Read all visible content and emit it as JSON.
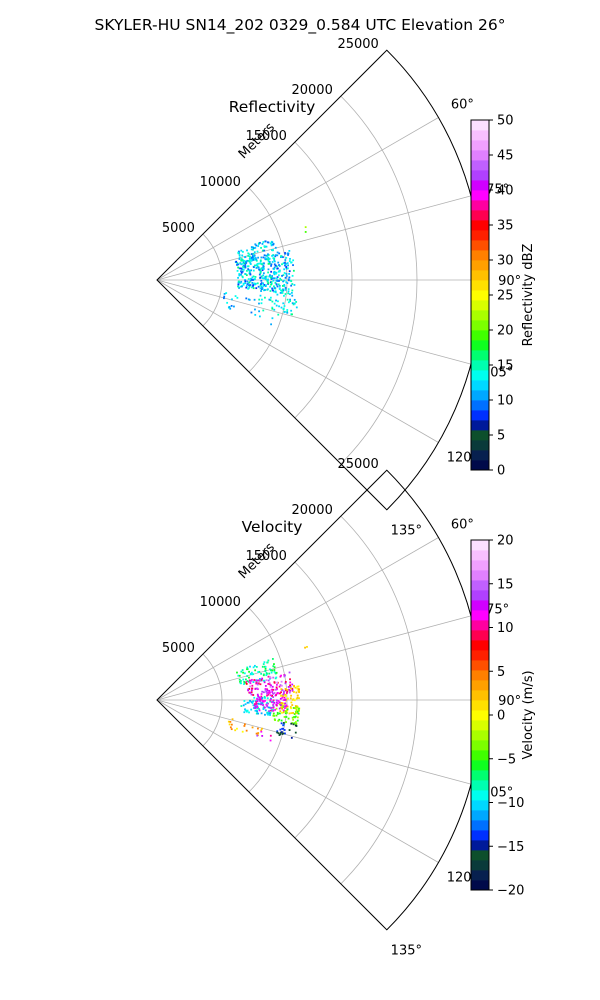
{
  "figure": {
    "title": "SKYLER-HU  SN14_202  0329_0.584 UTC Elevation 26°"
  },
  "chart_data": [
    {
      "type": "scatter",
      "projection": "polar-wedge",
      "title": "Reflectivity",
      "radial_label": "Meters",
      "radial_ticks": [
        5000,
        10000,
        15000,
        20000,
        25000
      ],
      "radial_tick_labels": [
        "5000",
        "10000",
        "15000",
        "20000",
        "25000"
      ],
      "radial_range": [
        0,
        25000
      ],
      "azimuth_range_deg": [
        45,
        135
      ],
      "azimuth_ticks_deg": [
        60,
        75,
        90,
        105,
        120,
        135
      ],
      "azimuth_tick_labels": [
        "60°",
        "75°",
        "90°",
        "105°",
        "120°",
        "135°"
      ],
      "grid": true,
      "colorbar": {
        "label": "Reflectivity dBZ",
        "min": 0,
        "max": 50,
        "ticks": [
          0,
          5,
          10,
          15,
          20,
          25,
          30,
          35,
          40,
          45,
          50
        ],
        "tick_labels": [
          "0",
          "5",
          "10",
          "15",
          "20",
          "25",
          "30",
          "35",
          "40",
          "45",
          "50"
        ],
        "colors": [
          "#000a4a",
          "#07204f",
          "#0a3a3a",
          "#0d4f2c",
          "#001a9a",
          "#0030ff",
          "#0070ff",
          "#00a8ff",
          "#00d8ff",
          "#00ffee",
          "#00ffb0",
          "#00ff70",
          "#10ff20",
          "#40ff00",
          "#7cff00",
          "#aaff00",
          "#d8ff00",
          "#ffff00",
          "#ffe000",
          "#ffc000",
          "#ffa000",
          "#ff8000",
          "#ff5000",
          "#ff2000",
          "#ff0000",
          "#ff0050",
          "#ff00a0",
          "#ff00ff",
          "#d000ff",
          "#b040ff",
          "#c060ff",
          "#e080ff",
          "#f0a0ff",
          "#f8c0ff",
          "#fce0ff"
        ]
      },
      "clusters": [
        {
          "az": [
            77,
            96
          ],
          "r": [
            6200,
            10600
          ],
          "n": 360,
          "values": [
            8,
            16
          ]
        },
        {
          "az": [
            70,
            80
          ],
          "r": [
            6500,
            9500
          ],
          "n": 90,
          "values": [
            9,
            15
          ]
        },
        {
          "az": [
            96,
            106
          ],
          "r": [
            8000,
            11000
          ],
          "n": 50,
          "values": [
            10,
            16
          ]
        },
        {
          "az": [
            100,
            112
          ],
          "r": [
            5000,
            8000
          ],
          "n": 20,
          "values": [
            9,
            14
          ]
        },
        {
          "az": [
            106,
            112
          ],
          "r": [
            8000,
            9500
          ],
          "n": 5,
          "values": [
            10,
            14
          ]
        },
        {
          "az": [
            70,
            73
          ],
          "r": [
            12000,
            12500
          ],
          "n": 2,
          "values": [
            18,
            22
          ]
        }
      ]
    },
    {
      "type": "scatter",
      "projection": "polar-wedge",
      "title": "Velocity",
      "radial_label": "Meters",
      "radial_ticks": [
        5000,
        10000,
        15000,
        20000,
        25000
      ],
      "radial_tick_labels": [
        "5000",
        "10000",
        "15000",
        "20000",
        "25000"
      ],
      "radial_range": [
        0,
        25000
      ],
      "azimuth_range_deg": [
        45,
        135
      ],
      "azimuth_ticks_deg": [
        60,
        75,
        90,
        105,
        120,
        135
      ],
      "azimuth_tick_labels": [
        "60°",
        "75°",
        "90°",
        "105°",
        "120°",
        "135°"
      ],
      "grid": true,
      "colorbar": {
        "label": "Velocity (m/s)",
        "min": -20,
        "max": 20,
        "ticks": [
          -20,
          -15,
          -10,
          -5,
          0,
          5,
          10,
          15,
          20
        ],
        "tick_labels": [
          "−20",
          "−15",
          "−10",
          "−5",
          "0",
          "5",
          "10",
          "15",
          "20"
        ],
        "colors": [
          "#000a4a",
          "#07204f",
          "#0a3a3a",
          "#0d4f2c",
          "#001a9a",
          "#0030ff",
          "#0070ff",
          "#00a8ff",
          "#00d8ff",
          "#00ffee",
          "#00ffb0",
          "#00ff70",
          "#10ff20",
          "#40ff00",
          "#7cff00",
          "#aaff00",
          "#d8ff00",
          "#ffff00",
          "#ffe000",
          "#ffc000",
          "#ffa000",
          "#ff8000",
          "#ff5000",
          "#ff2000",
          "#ff0000",
          "#ff0050",
          "#ff00a0",
          "#ff00ff",
          "#d000ff",
          "#b040ff",
          "#c060ff",
          "#e080ff",
          "#f0a0ff",
          "#f8c0ff",
          "#fce0ff"
        ]
      },
      "clusters": [
        {
          "az": [
            70,
            80
          ],
          "r": [
            6500,
            9500
          ],
          "n": 80,
          "values": [
            -10,
            -5
          ]
        },
        {
          "az": [
            78,
            88
          ],
          "r": [
            7000,
            10500
          ],
          "n": 120,
          "values": [
            8,
            16
          ]
        },
        {
          "az": [
            84,
            96
          ],
          "r": [
            9500,
            11000
          ],
          "n": 70,
          "values": [
            0,
            3
          ]
        },
        {
          "az": [
            88,
            98
          ],
          "r": [
            6500,
            9000
          ],
          "n": 80,
          "values": [
            -12,
            -8
          ]
        },
        {
          "az": [
            92,
            100
          ],
          "r": [
            9000,
            11000
          ],
          "n": 50,
          "values": [
            -6,
            -2
          ]
        },
        {
          "az": [
            86,
            96
          ],
          "r": [
            7500,
            10000
          ],
          "n": 80,
          "values": [
            10,
            14
          ]
        },
        {
          "az": [
            100,
            106
          ],
          "r": [
            9500,
            11000
          ],
          "n": 25,
          "values": [
            -17,
            -13
          ]
        },
        {
          "az": [
            104,
            112
          ],
          "r": [
            5500,
            8500
          ],
          "n": 20,
          "values": [
            0,
            5
          ]
        },
        {
          "az": [
            106,
            112
          ],
          "r": [
            8000,
            9500
          ],
          "n": 5,
          "values": [
            10,
            14
          ]
        },
        {
          "az": [
            70,
            73
          ],
          "r": [
            12000,
            12500
          ],
          "n": 2,
          "values": [
            -2,
            2
          ]
        }
      ]
    }
  ]
}
